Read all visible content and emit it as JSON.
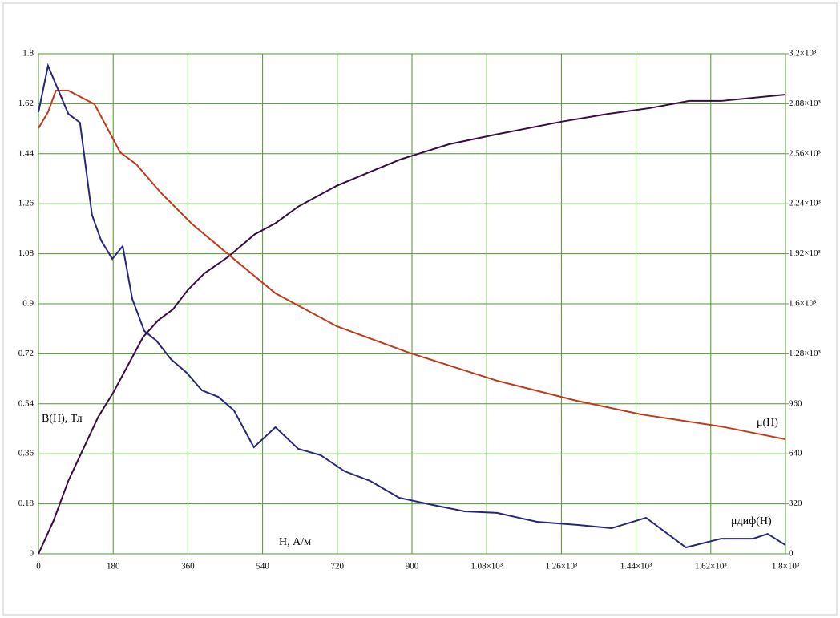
{
  "chart_data": {
    "type": "line",
    "x_label": "H, А/м",
    "y_label": "B(H), Тл",
    "xlim": [
      0,
      1800
    ],
    "xticks": [
      0,
      180,
      360,
      540,
      720,
      900,
      {
        "value": 1080,
        "label": "1.08×10³"
      },
      {
        "value": 1260,
        "label": "1.26×10³"
      },
      {
        "value": 1440,
        "label": "1.44×10³"
      },
      {
        "value": 1620,
        "label": "1.62×10³"
      },
      {
        "value": 1800,
        "label": "1.8×10³"
      }
    ],
    "ylim": [
      0,
      1.8
    ],
    "yticks": [
      0,
      0.18,
      0.36,
      0.54,
      0.72,
      0.9,
      1.08,
      1.26,
      1.44,
      1.62,
      1.8
    ],
    "y2lim": [
      0,
      3200
    ],
    "y2ticks": [
      0,
      320,
      640,
      960,
      {
        "value": 1280,
        "label": "1.28×10³"
      },
      {
        "value": 1600,
        "label": "1.6×10³"
      },
      {
        "value": 1920,
        "label": "1.92×10³"
      },
      {
        "value": 2240,
        "label": "2.24×10³"
      },
      {
        "value": 2560,
        "label": "2.56×10³"
      },
      {
        "value": 2880,
        "label": "2.88×10³"
      },
      {
        "value": 3200,
        "label": "3.2×10³"
      }
    ],
    "grid": true,
    "grid_color": "#4a9a2a",
    "series": [
      {
        "name": "B(H)",
        "color": "#3a0a45",
        "x": [
          0,
          36,
          72,
          108,
          144,
          180,
          216,
          252,
          288,
          324,
          360,
          400,
          458,
          521,
          571,
          626,
          719,
          796,
          873,
          989,
          1105,
          1259,
          1375,
          1472,
          1568,
          1645,
          1800
        ],
        "values": [
          0,
          0.118,
          0.263,
          0.378,
          0.493,
          0.58,
          0.68,
          0.78,
          0.84,
          0.88,
          0.95,
          1.01,
          1.07,
          1.15,
          1.19,
          1.25,
          1.325,
          1.373,
          1.42,
          1.474,
          1.51,
          1.555,
          1.584,
          1.604,
          1.63,
          1.63,
          1.653
        ]
      },
      {
        "name": "μ(H)",
        "color": "#c0391b",
        "axis": "y2",
        "x": [
          0,
          23,
          42,
          72,
          135,
          197,
          236,
          294,
          371,
          487,
          571,
          719,
          893,
          1105,
          1298,
          1453,
          1645,
          1800
        ],
        "values": [
          2723,
          2826,
          2964,
          2964,
          2877,
          2569,
          2492,
          2313,
          2108,
          1851,
          1667,
          1456,
          1287,
          1108,
          979,
          892,
          815,
          733
        ]
      },
      {
        "name": "μдиф(H)",
        "color": "#26267a",
        "axis": "y2",
        "x": [
          0,
          23,
          72,
          100,
          129,
          151,
          178,
          203,
          226,
          255,
          284,
          319,
          357,
          394,
          433,
          471,
          519,
          571,
          626,
          680,
          738,
          799,
          869,
          950,
          1027,
          1105,
          1201,
          1298,
          1381,
          1464,
          1560,
          1645,
          1722,
          1757,
          1800
        ],
        "values": [
          2826,
          3123,
          2815,
          2759,
          2169,
          2005,
          1887,
          1969,
          1631,
          1426,
          1364,
          1246,
          1159,
          1046,
          1005,
          918,
          682,
          810,
          672,
          631,
          528,
          467,
          359,
          313,
          272,
          262,
          205,
          185,
          164,
          231,
          41,
          97,
          97,
          128,
          56
        ]
      }
    ]
  }
}
